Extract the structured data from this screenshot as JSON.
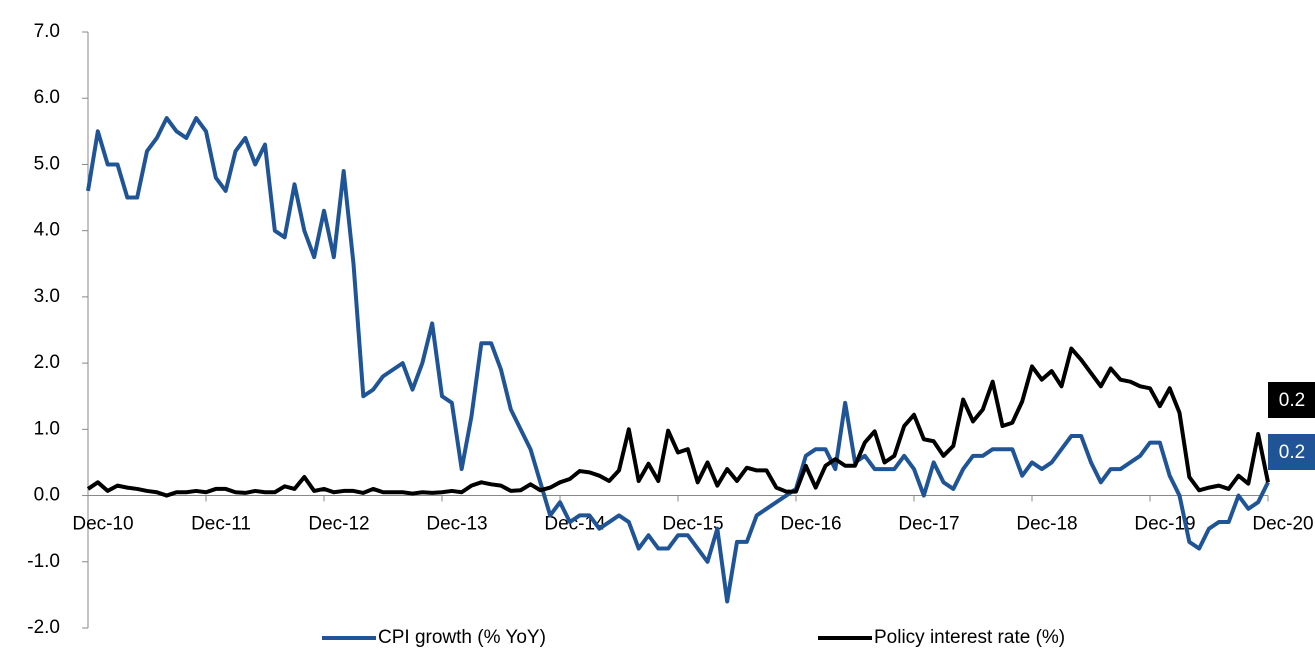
{
  "chart_data": {
    "type": "line",
    "categories": [
      "Dec-10",
      null,
      null,
      null,
      null,
      null,
      null,
      null,
      null,
      null,
      null,
      null,
      "Dec-11",
      null,
      null,
      null,
      null,
      null,
      null,
      null,
      null,
      null,
      null,
      null,
      "Dec-12",
      null,
      null,
      null,
      null,
      null,
      null,
      null,
      null,
      null,
      null,
      null,
      "Dec-13",
      null,
      null,
      null,
      null,
      null,
      null,
      null,
      null,
      null,
      null,
      null,
      "Dec-14",
      null,
      null,
      null,
      null,
      null,
      null,
      null,
      null,
      null,
      null,
      null,
      "Dec-15",
      null,
      null,
      null,
      null,
      null,
      null,
      null,
      null,
      null,
      null,
      null,
      "Dec-16",
      null,
      null,
      null,
      null,
      null,
      null,
      null,
      null,
      null,
      null,
      null,
      "Dec-17",
      null,
      null,
      null,
      null,
      null,
      null,
      null,
      null,
      null,
      null,
      null,
      "Dec-18",
      null,
      null,
      null,
      null,
      null,
      null,
      null,
      null,
      null,
      null,
      null,
      "Dec-19",
      null,
      null,
      null,
      null,
      null,
      null,
      null,
      null,
      null,
      null,
      null,
      "Dec-20"
    ],
    "series": [
      {
        "name": "CPI growth (% YoY)",
        "color": "#1f5597",
        "values": [
          4.6,
          5.5,
          5.0,
          5.0,
          4.5,
          4.5,
          5.2,
          5.4,
          5.7,
          5.5,
          5.4,
          5.7,
          5.5,
          4.8,
          4.6,
          5.2,
          5.4,
          5.0,
          5.3,
          4.0,
          3.9,
          4.7,
          4.0,
          3.6,
          4.3,
          3.6,
          4.9,
          3.5,
          1.5,
          1.6,
          1.8,
          1.9,
          2.0,
          1.6,
          2.0,
          2.6,
          1.5,
          1.4,
          0.4,
          1.2,
          2.3,
          2.3,
          1.9,
          1.3,
          1.0,
          0.7,
          0.2,
          -0.3,
          -0.1,
          -0.4,
          -0.3,
          -0.3,
          -0.5,
          -0.4,
          -0.3,
          -0.4,
          -0.8,
          -0.6,
          -0.8,
          -0.8,
          -0.6,
          -0.6,
          -0.8,
          -1.0,
          -0.5,
          -1.6,
          -0.7,
          -0.7,
          -0.3,
          -0.2,
          -0.1,
          0.0,
          0.1,
          0.6,
          0.7,
          0.7,
          0.4,
          1.4,
          0.5,
          0.6,
          0.4,
          0.4,
          0.4,
          0.6,
          0.4,
          0.0,
          0.5,
          0.2,
          0.1,
          0.4,
          0.6,
          0.6,
          0.7,
          0.7,
          0.7,
          0.3,
          0.5,
          0.4,
          0.5,
          0.7,
          0.9,
          0.9,
          0.5,
          0.2,
          0.4,
          0.4,
          0.5,
          0.6,
          0.8,
          0.8,
          0.3,
          0.0,
          -0.7,
          -0.8,
          -0.5,
          -0.4,
          -0.4,
          0.0,
          -0.2,
          -0.1,
          0.2
        ]
      },
      {
        "name": "Policy interest rate (%)",
        "color": "#000000",
        "values": [
          0.1,
          0.2,
          0.07,
          0.15,
          0.12,
          0.1,
          0.07,
          0.05,
          0.0,
          0.05,
          0.05,
          0.07,
          0.05,
          0.1,
          0.1,
          0.05,
          0.04,
          0.07,
          0.05,
          0.05,
          0.14,
          0.1,
          0.28,
          0.07,
          0.1,
          0.05,
          0.07,
          0.07,
          0.04,
          0.1,
          0.05,
          0.05,
          0.05,
          0.03,
          0.05,
          0.04,
          0.05,
          0.07,
          0.05,
          0.15,
          0.2,
          0.17,
          0.15,
          0.07,
          0.08,
          0.17,
          0.08,
          0.12,
          0.2,
          0.25,
          0.37,
          0.35,
          0.3,
          0.22,
          0.38,
          1.0,
          0.22,
          0.48,
          0.22,
          0.98,
          0.65,
          0.7,
          0.2,
          0.5,
          0.15,
          0.4,
          0.22,
          0.42,
          0.38,
          0.38,
          0.12,
          0.06,
          0.06,
          0.45,
          0.12,
          0.45,
          0.55,
          0.45,
          0.45,
          0.8,
          0.97,
          0.5,
          0.6,
          1.05,
          1.22,
          0.85,
          0.82,
          0.6,
          0.75,
          1.45,
          1.12,
          1.3,
          1.72,
          1.05,
          1.1,
          1.42,
          1.95,
          1.75,
          1.88,
          1.65,
          2.22,
          2.05,
          1.85,
          1.65,
          1.92,
          1.75,
          1.72,
          1.65,
          1.62,
          1.35,
          1.62,
          1.25,
          0.28,
          0.08,
          0.12,
          0.15,
          0.1,
          0.3,
          0.18,
          0.93,
          0.2
        ]
      }
    ],
    "ylim": [
      -2,
      7
    ],
    "yticks": [
      {
        "value": -2,
        "label": "-2.0"
      },
      {
        "value": -1,
        "label": "-1.0"
      },
      {
        "value": 0,
        "label": "0.0"
      },
      {
        "value": 1,
        "label": "1.0"
      },
      {
        "value": 2,
        "label": "2.0"
      },
      {
        "value": 3,
        "label": "3.0"
      },
      {
        "value": 4,
        "label": "4.0"
      },
      {
        "value": 5,
        "label": "5.0"
      },
      {
        "value": 6,
        "label": "6.0"
      },
      {
        "value": 7,
        "label": "7.0"
      }
    ],
    "legend": "bottom"
  }
}
